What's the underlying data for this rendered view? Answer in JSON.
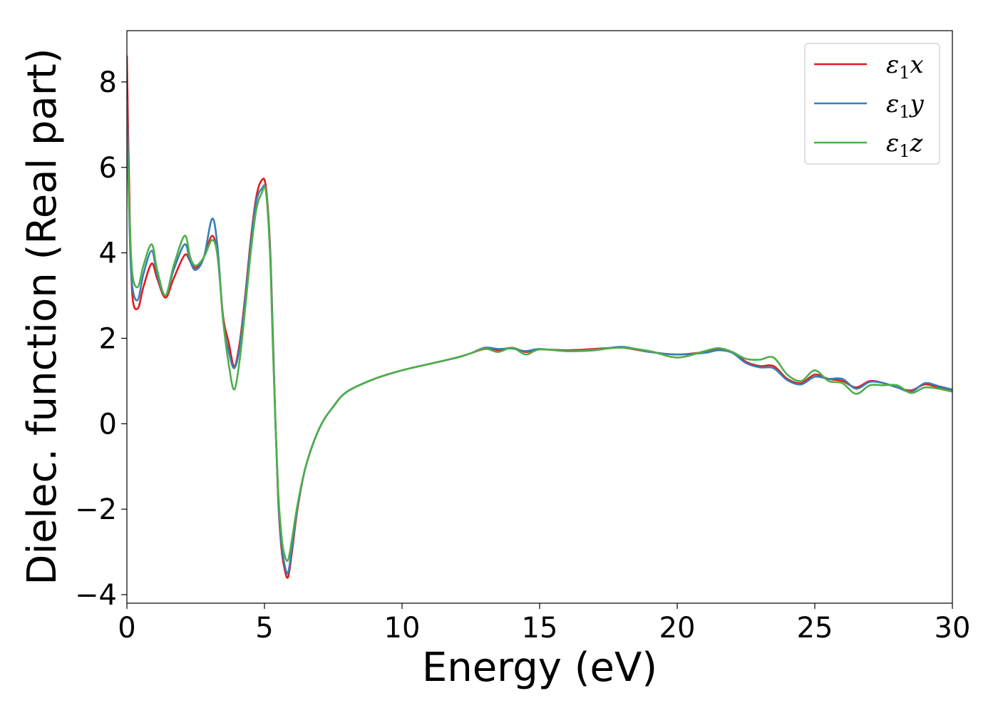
{
  "chart_data": {
    "type": "line",
    "title": "",
    "xlabel": "Energy (eV)",
    "ylabel": "Dielec. function (Real part)",
    "xlim": [
      0,
      30
    ],
    "ylim": [
      -4.2,
      9.2
    ],
    "xticks": [
      0,
      5,
      10,
      15,
      20,
      25,
      30
    ],
    "xtick_labels": [
      "0",
      "5",
      "10",
      "15",
      "20",
      "25",
      "30"
    ],
    "yticks": [
      -4,
      -2,
      0,
      2,
      4,
      6,
      8
    ],
    "ytick_labels": [
      "−4",
      "−2",
      "0",
      "2",
      "4",
      "6",
      "8"
    ],
    "grid": false,
    "legend": {
      "placement": "top-right"
    },
    "series": [
      {
        "name": "ε₁x",
        "name_base": "ε",
        "name_sub": "1",
        "name_suffix": "x",
        "color": "#e41a1c",
        "x": [
          0,
          0.1,
          0.2,
          0.4,
          0.6,
          0.9,
          1.1,
          1.4,
          1.7,
          2.1,
          2.3,
          2.5,
          2.8,
          3.1,
          3.3,
          3.5,
          3.7,
          3.9,
          4.1,
          4.3,
          4.5,
          4.7,
          4.9,
          5.05,
          5.2,
          5.3,
          5.4,
          5.5,
          5.6,
          5.7,
          5.85,
          6.0,
          6.2,
          6.5,
          7,
          7.5,
          8,
          9,
          10,
          11,
          12,
          12.5,
          13,
          13.5,
          14,
          14.5,
          15,
          16,
          17,
          18,
          19,
          20,
          21,
          21.5,
          22,
          22.5,
          23,
          23.5,
          24,
          24.5,
          25,
          25.5,
          26,
          26.5,
          27,
          27.5,
          28,
          28.5,
          29,
          29.5,
          30
        ],
        "y": [
          8.6,
          5.0,
          3.0,
          2.7,
          3.2,
          3.75,
          3.4,
          2.95,
          3.4,
          3.95,
          3.8,
          3.65,
          3.9,
          4.4,
          3.9,
          2.5,
          1.9,
          1.35,
          1.9,
          3.0,
          4.3,
          5.3,
          5.7,
          5.55,
          4.2,
          2.2,
          0.0,
          -1.8,
          -2.8,
          -3.3,
          -3.6,
          -3.0,
          -2.0,
          -1.0,
          -0.1,
          0.4,
          0.75,
          1.05,
          1.25,
          1.4,
          1.55,
          1.65,
          1.75,
          1.72,
          1.78,
          1.68,
          1.74,
          1.72,
          1.75,
          1.78,
          1.68,
          1.62,
          1.68,
          1.75,
          1.68,
          1.45,
          1.35,
          1.35,
          1.05,
          0.95,
          1.15,
          1.05,
          1.0,
          0.85,
          1.0,
          0.95,
          0.85,
          0.78,
          0.92,
          0.85,
          0.78
        ]
      },
      {
        "name": "ε₁y",
        "name_base": "ε",
        "name_sub": "1",
        "name_suffix": "y",
        "color": "#377eb8",
        "x": [
          0,
          0.1,
          0.2,
          0.4,
          0.6,
          0.9,
          1.1,
          1.4,
          1.7,
          2.1,
          2.3,
          2.5,
          2.8,
          3.1,
          3.3,
          3.5,
          3.7,
          3.9,
          4.1,
          4.3,
          4.5,
          4.7,
          4.9,
          5.05,
          5.2,
          5.3,
          5.4,
          5.5,
          5.6,
          5.7,
          5.85,
          6.0,
          6.2,
          6.5,
          7,
          7.5,
          8,
          9,
          10,
          11,
          12,
          12.5,
          13,
          13.5,
          14,
          14.5,
          15,
          16,
          17,
          18,
          19,
          20,
          21,
          21.5,
          22,
          22.5,
          23,
          23.5,
          24,
          24.5,
          25,
          25.5,
          26,
          26.5,
          27,
          27.5,
          28,
          28.5,
          29,
          29.5,
          30
        ],
        "y": [
          7.6,
          4.5,
          3.2,
          2.9,
          3.5,
          4.05,
          3.5,
          3.0,
          3.6,
          4.2,
          3.8,
          3.6,
          3.9,
          4.8,
          4.1,
          2.4,
          1.7,
          1.3,
          1.8,
          2.9,
          4.2,
          5.2,
          5.5,
          5.45,
          4.1,
          2.1,
          0.0,
          -1.7,
          -2.7,
          -3.2,
          -3.5,
          -2.9,
          -1.95,
          -1.0,
          -0.1,
          0.4,
          0.75,
          1.05,
          1.25,
          1.4,
          1.55,
          1.65,
          1.78,
          1.75,
          1.76,
          1.7,
          1.75,
          1.7,
          1.72,
          1.8,
          1.68,
          1.62,
          1.66,
          1.72,
          1.66,
          1.42,
          1.32,
          1.3,
          1.02,
          0.92,
          1.1,
          1.05,
          1.05,
          0.82,
          0.98,
          0.95,
          0.85,
          0.75,
          0.95,
          0.88,
          0.8
        ]
      },
      {
        "name": "ε₁z",
        "name_base": "ε",
        "name_sub": "1",
        "name_suffix": "z",
        "color": "#4daf4a",
        "x": [
          0,
          0.1,
          0.2,
          0.4,
          0.6,
          0.9,
          1.1,
          1.4,
          1.7,
          2.1,
          2.3,
          2.5,
          2.8,
          3.1,
          3.3,
          3.5,
          3.7,
          3.9,
          4.1,
          4.3,
          4.5,
          4.7,
          4.9,
          5.05,
          5.2,
          5.3,
          5.4,
          5.5,
          5.6,
          5.7,
          5.85,
          6.0,
          6.2,
          6.5,
          7,
          7.5,
          8,
          9,
          10,
          11,
          12,
          12.5,
          13,
          13.5,
          14,
          14.5,
          15,
          16,
          17,
          18,
          19,
          20,
          21,
          21.5,
          22,
          22.5,
          23,
          23.5,
          24,
          24.5,
          25,
          25.5,
          26,
          26.5,
          27,
          27.5,
          28,
          28.5,
          29,
          29.5,
          30
        ],
        "y": [
          6.7,
          4.8,
          3.5,
          3.2,
          3.7,
          4.2,
          3.6,
          3.0,
          3.7,
          4.4,
          3.9,
          3.7,
          3.9,
          4.3,
          3.9,
          2.4,
          1.4,
          0.8,
          1.5,
          2.7,
          4.0,
          5.0,
          5.4,
          5.45,
          4.0,
          1.9,
          0.0,
          -1.6,
          -2.5,
          -3.0,
          -3.2,
          -2.7,
          -1.9,
          -1.0,
          -0.1,
          0.4,
          0.75,
          1.05,
          1.25,
          1.4,
          1.55,
          1.65,
          1.76,
          1.68,
          1.78,
          1.62,
          1.74,
          1.7,
          1.73,
          1.78,
          1.7,
          1.55,
          1.7,
          1.77,
          1.68,
          1.52,
          1.5,
          1.55,
          1.15,
          1.0,
          1.25,
          1.0,
          0.95,
          0.7,
          0.9,
          0.9,
          0.9,
          0.72,
          0.85,
          0.82,
          0.75
        ]
      }
    ]
  }
}
